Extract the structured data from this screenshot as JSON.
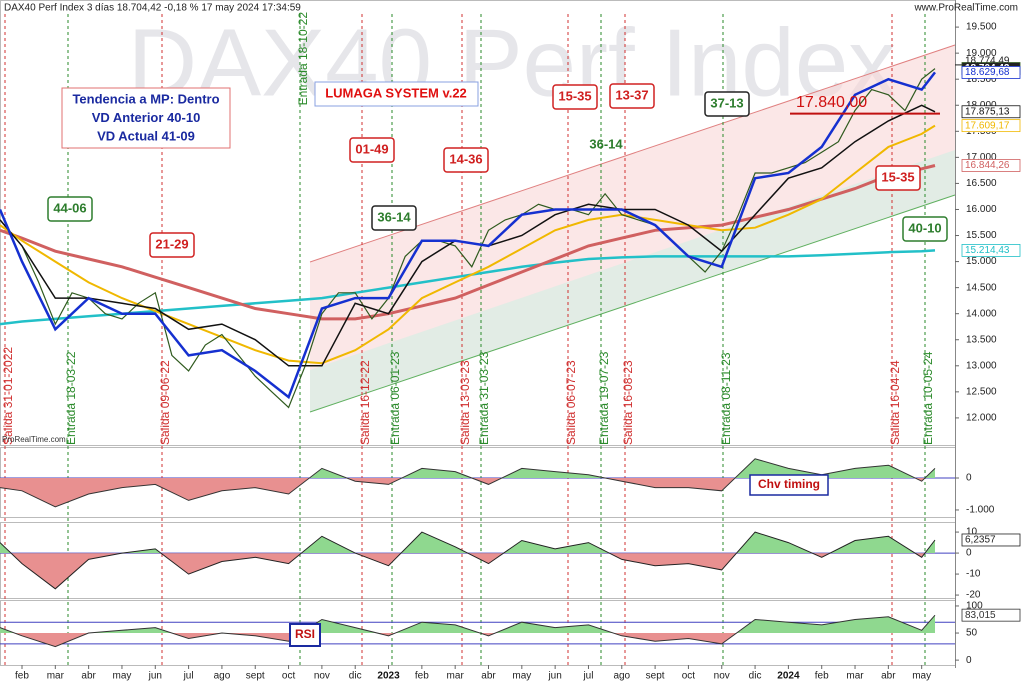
{
  "header": {
    "title": "DAX40 Perf Index 3 días 18.704,42 -0,18 % 17 may 2024 17:34:59",
    "site": "www.ProRealTime.com",
    "watermark": "DAX40 Perf Index",
    "credit": "ProRealTime.com"
  },
  "chart_data": [
    {
      "type": "line",
      "ylim": [
        11480,
        20020
      ],
      "xlim": [
        0.34,
        29.0
      ],
      "yticks": [
        {
          "value": 12000,
          "label": "12.000"
        },
        {
          "value": 12500,
          "label": "12.500"
        },
        {
          "value": 13000,
          "label": "13.000"
        },
        {
          "value": 13500,
          "label": "13.500"
        },
        {
          "value": 14000,
          "label": "14.000"
        },
        {
          "value": 14500,
          "label": "14.500"
        },
        {
          "value": 15000,
          "label": "15.000"
        },
        {
          "value": 15500,
          "label": "15.500"
        },
        {
          "value": 16000,
          "label": "16.000"
        },
        {
          "value": 16500,
          "label": "16.500"
        },
        {
          "value": 17000,
          "label": "17.000"
        },
        {
          "value": 17500,
          "label": "17.500"
        },
        {
          "value": 18000,
          "label": "18.000"
        },
        {
          "value": 18500,
          "label": "18.500"
        },
        {
          "value": 19000,
          "label": "19.000"
        },
        {
          "value": 19500,
          "label": "19.500"
        }
      ],
      "xticks": [
        {
          "value": 1,
          "label": "feb"
        },
        {
          "value": 2,
          "label": "mar"
        },
        {
          "value": 3,
          "label": "abr"
        },
        {
          "value": 4,
          "label": "may"
        },
        {
          "value": 5,
          "label": "jun"
        },
        {
          "value": 6,
          "label": "jul"
        },
        {
          "value": 7,
          "label": "ago"
        },
        {
          "value": 8,
          "label": "sept"
        },
        {
          "value": 9,
          "label": "oct"
        },
        {
          "value": 10,
          "label": "nov"
        },
        {
          "value": 11,
          "label": "dic"
        },
        12,
        {
          "value": 13,
          "label": "feb"
        },
        {
          "value": 14,
          "label": "mar"
        },
        {
          "value": 15,
          "label": "abr"
        },
        {
          "value": 16,
          "label": "may"
        },
        {
          "value": 17,
          "label": "jun"
        },
        {
          "value": 18,
          "label": "jul"
        },
        {
          "value": 19,
          "label": "ago"
        },
        {
          "value": 20,
          "label": "sept"
        },
        {
          "value": 21,
          "label": "oct"
        },
        {
          "value": 22,
          "label": "nov"
        },
        {
          "value": 23,
          "label": "dic"
        },
        24,
        {
          "value": 25,
          "label": "feb"
        },
        {
          "value": 26,
          "label": "mar"
        },
        {
          "value": 27,
          "label": "abr"
        },
        {
          "value": 28,
          "label": "may"
        }
      ],
      "year_labels": [
        {
          "value": 12,
          "label": "2023"
        },
        {
          "value": 24,
          "label": "2024"
        }
      ],
      "high": {
        "value": 18774.49,
        "label": "18.774,49"
      },
      "series": [
        {
          "name": "cyan",
          "color": "#22c0c8",
          "width": 2.5,
          "last_label": "15.214,43",
          "x": [
            0.34,
            1,
            2,
            3,
            4,
            5,
            6,
            7,
            8,
            9,
            10,
            11,
            12,
            13,
            14,
            15,
            16,
            17,
            18,
            19,
            20,
            21,
            22,
            23,
            24,
            25,
            26,
            27,
            28,
            28.4
          ],
          "values": [
            13800,
            13850,
            13900,
            13950,
            14000,
            14050,
            14100,
            14150,
            14200,
            14250,
            14300,
            14400,
            14500,
            14600,
            14700,
            14800,
            14900,
            14980,
            15050,
            15080,
            15100,
            15100,
            15100,
            15100,
            15100,
            15120,
            15150,
            15180,
            15200,
            15214.43
          ]
        },
        {
          "name": "red",
          "color": "#d06060",
          "width": 3,
          "last_label": "16.844,26",
          "x": [
            0.34,
            1,
            2,
            3,
            4,
            5,
            6,
            7,
            8,
            9,
            10,
            11,
            12,
            13,
            14,
            15,
            16,
            17,
            18,
            19,
            20,
            21,
            22,
            23,
            24,
            25,
            26,
            27,
            28,
            28.4
          ],
          "values": [
            15600,
            15450,
            15200,
            15050,
            14900,
            14700,
            14500,
            14300,
            14100,
            14000,
            13900,
            13900,
            14000,
            14150,
            14300,
            14550,
            14800,
            15050,
            15300,
            15450,
            15600,
            15650,
            15700,
            15850,
            16000,
            16200,
            16400,
            16650,
            16780,
            16844.26
          ]
        },
        {
          "name": "yellow",
          "color": "#f0b800",
          "width": 2,
          "last_label": "17.609,17",
          "x": [
            0.34,
            1,
            2,
            3,
            4,
            5,
            6,
            7,
            8,
            9,
            10,
            11,
            12,
            13,
            14,
            15,
            16,
            17,
            18,
            19,
            20,
            21,
            22,
            23,
            24,
            25,
            26,
            27,
            28,
            28.4
          ],
          "values": [
            15700,
            15400,
            15000,
            14600,
            14300,
            14050,
            13800,
            13550,
            13300,
            13100,
            13050,
            13300,
            13700,
            14300,
            14600,
            14900,
            15250,
            15600,
            15800,
            15900,
            15800,
            15700,
            15600,
            15650,
            15900,
            16200,
            16700,
            17200,
            17450,
            17609.17
          ]
        },
        {
          "name": "price",
          "color": "#2f5a1e",
          "width": 1.2,
          "last_label": "18.704,42",
          "x": [
            0.34,
            1,
            1.5,
            2,
            2.5,
            3,
            3.5,
            4,
            4.5,
            5,
            5.5,
            6,
            6.5,
            7,
            7.5,
            8,
            8.5,
            9,
            9.5,
            10,
            10.5,
            11,
            11.5,
            12,
            12.5,
            13,
            13.5,
            14,
            14.5,
            15,
            15.5,
            16,
            16.5,
            17,
            17.5,
            18,
            18.5,
            19,
            19.5,
            20,
            20.5,
            21,
            21.5,
            22,
            22.5,
            23,
            23.5,
            24,
            24.5,
            25,
            25.5,
            26,
            26.5,
            27,
            27.5,
            28,
            28.4
          ],
          "values": [
            15800,
            15300,
            14600,
            13800,
            14400,
            14300,
            14000,
            13900,
            14200,
            14400,
            13200,
            12900,
            13400,
            13600,
            13200,
            12800,
            12500,
            12200,
            13000,
            14000,
            14400,
            14400,
            13900,
            14300,
            15100,
            15400,
            15400,
            15300,
            14900,
            15600,
            15800,
            15900,
            16100,
            16000,
            16000,
            15900,
            16300,
            15900,
            15800,
            15700,
            15400,
            15100,
            14800,
            15200,
            15900,
            16700,
            16700,
            16800,
            16900,
            17100,
            17300,
            17900,
            18300,
            18200,
            17900,
            18500,
            18704.42
          ]
        },
        {
          "name": "black",
          "color": "#111111",
          "width": 1.5,
          "last_label": "17.875,13",
          "x": [
            0.34,
            1,
            2,
            3,
            4,
            5,
            6,
            7,
            8,
            9,
            10,
            11,
            12,
            13,
            14,
            15,
            16,
            17,
            18,
            19,
            20,
            21,
            22,
            23,
            24,
            25,
            26,
            27,
            28,
            28.4
          ],
          "values": [
            15800,
            15300,
            14300,
            14300,
            14200,
            14100,
            13700,
            13800,
            13500,
            13000,
            13000,
            14200,
            14000,
            15000,
            15400,
            15300,
            15500,
            15900,
            16100,
            16000,
            16000,
            15700,
            15200,
            15900,
            16600,
            16800,
            17300,
            17700,
            18000,
            17875.13
          ]
        },
        {
          "name": "blue",
          "color": "#1530d0",
          "width": 2.5,
          "last_label": "18.629,68",
          "x": [
            0.34,
            1,
            2,
            3,
            4,
            5,
            6,
            7,
            8,
            9,
            10,
            11,
            12,
            13,
            14,
            15,
            16,
            17,
            18,
            19,
            20,
            21,
            22,
            23,
            24,
            25,
            26,
            27,
            28,
            28.4
          ],
          "values": [
            16000,
            15000,
            13700,
            14300,
            14000,
            14000,
            13200,
            13300,
            12900,
            12400,
            14100,
            14300,
            14300,
            15400,
            15400,
            15300,
            15900,
            16000,
            16000,
            16000,
            15700,
            15100,
            14900,
            16600,
            16700,
            17200,
            18200,
            18500,
            18300,
            18629.68
          ]
        }
      ],
      "info_box": [
        "Tendencia a MP: Dentro",
        "VD Anterior 40-10",
        "VD Actual 41-09"
      ],
      "system": "LUMAGA SYSTEM v.22",
      "target": {
        "value": 17840,
        "label": "17.840,00"
      },
      "annotations": [
        {
          "text": "44-06",
          "color": "#2d7d2d",
          "border": "#2d7d2d"
        },
        {
          "text": "21-29",
          "color": "#d02020",
          "border": "#d02020"
        },
        {
          "text": "01-49",
          "color": "#d02020",
          "border": "#d02020"
        },
        {
          "text": "36-14",
          "color": "#2d7d2d",
          "border": "#222222"
        },
        {
          "text": "14-36",
          "color": "#d02020",
          "border": "#d02020"
        },
        {
          "text": "15-35",
          "color": "#d02020",
          "border": "#d02020"
        },
        {
          "text": "13-37",
          "color": "#d02020",
          "border": "#d02020"
        },
        {
          "text": "36-14",
          "color": "#2d7d2d"
        },
        {
          "text": "37-13",
          "color": "#2d7d2d",
          "border": "#222222"
        },
        {
          "text": "15-35",
          "color": "#d02020",
          "border": "#d02020"
        },
        {
          "text": "40-10",
          "color": "#2d7d2d",
          "border": "#2d7d2d"
        }
      ],
      "signals": [
        {
          "text": "Salida 31-01-2022",
          "color": "#d03030"
        },
        {
          "text": "Entrada 18-03-22",
          "color": "#2a8a2a"
        },
        {
          "text": "Salida 09-06-22",
          "color": "#d03030"
        },
        {
          "text": "Entrada 18-10-22",
          "color": "#2a8a2a"
        },
        {
          "text": "Salida 16-12-22",
          "color": "#d03030"
        },
        {
          "text": "Entrada 06-01-23",
          "color": "#2a8a2a"
        },
        {
          "text": "Salida 13-03-23",
          "color": "#d03030"
        },
        {
          "text": "Entrada 31-03-23",
          "color": "#2a8a2a"
        },
        {
          "text": "Salida 06-07-23",
          "color": "#d03030"
        },
        {
          "text": "Entrada 19-07-23",
          "color": "#2a8a2a"
        },
        {
          "text": "Salida 16-08-23",
          "color": "#d03030"
        },
        {
          "text": "Entrada 08-11-23",
          "color": "#2a8a2a"
        },
        {
          "text": "Salida 16-04-24",
          "color": "#d03030"
        },
        {
          "text": "Entrada 10-05-24",
          "color": "#2a8a2a"
        }
      ]
    },
    {
      "type": "oscillator",
      "name": "Chv timing",
      "ylim": [
        -1220,
        970
      ],
      "yticks": [
        0,
        {
          "value": -1000,
          "label": "-1.000"
        }
      ],
      "levels": [
        0
      ],
      "series": [
        {
          "color": "#333333",
          "fill_up": "#8fd88f",
          "fill_down": "#e89090",
          "x": [
            0.34,
            1,
            2,
            3,
            4,
            5,
            6,
            7,
            8,
            9,
            10,
            11,
            12,
            13,
            14,
            15,
            16,
            17,
            18,
            19,
            20,
            21,
            22,
            23,
            24,
            25,
            26,
            27,
            28,
            28.4
          ],
          "values": [
            -300,
            -400,
            -900,
            -500,
            -300,
            -200,
            -700,
            -400,
            -300,
            -500,
            300,
            -100,
            -200,
            300,
            200,
            -200,
            300,
            200,
            100,
            -100,
            -300,
            -300,
            -400,
            600,
            300,
            100,
            300,
            400,
            -100,
            300
          ]
        }
      ]
    },
    {
      "type": "oscillator",
      "ylim": [
        -21.4,
        14.8
      ],
      "yticks": [
        10,
        0,
        -10,
        -20
      ],
      "levels": [
        0
      ],
      "series": [
        {
          "color": "#222222",
          "fill_up": "#8fd88f",
          "fill_down": "#e89090",
          "last_label": "6,2357",
          "x": [
            0.34,
            1,
            2,
            3,
            4,
            5,
            6,
            7,
            8,
            9,
            10,
            11,
            12,
            13,
            14,
            15,
            16,
            17,
            18,
            19,
            20,
            21,
            22,
            23,
            24,
            25,
            26,
            27,
            28,
            28.4
          ],
          "values": [
            5,
            -5,
            -17,
            -3,
            0,
            2,
            -10,
            -4,
            -2,
            -5,
            8,
            0,
            -6,
            10,
            3,
            -5,
            6,
            2,
            5,
            -3,
            -6,
            -5,
            -8,
            10,
            5,
            -2,
            6,
            8,
            -2,
            6.2357
          ]
        }
      ]
    },
    {
      "type": "oscillator",
      "name": "RSI",
      "ylim": [
        -9,
        111
      ],
      "yticks": [
        100,
        50,
        0
      ],
      "levels": [
        70,
        30
      ],
      "series": [
        {
          "color": "#333333",
          "fill_up": "#8fd88f",
          "fill_down": "#e89090",
          "base": 50,
          "last_label": "83,015",
          "x": [
            0.34,
            1,
            2,
            3,
            4,
            5,
            6,
            7,
            8,
            9,
            10,
            11,
            12,
            13,
            14,
            15,
            16,
            17,
            18,
            19,
            20,
            21,
            22,
            23,
            24,
            25,
            26,
            27,
            28,
            28.4
          ],
          "values": [
            60,
            45,
            25,
            50,
            55,
            60,
            40,
            50,
            45,
            35,
            75,
            60,
            45,
            70,
            65,
            45,
            70,
            60,
            65,
            45,
            35,
            40,
            30,
            75,
            70,
            65,
            75,
            80,
            55,
            83.015
          ]
        }
      ]
    }
  ]
}
